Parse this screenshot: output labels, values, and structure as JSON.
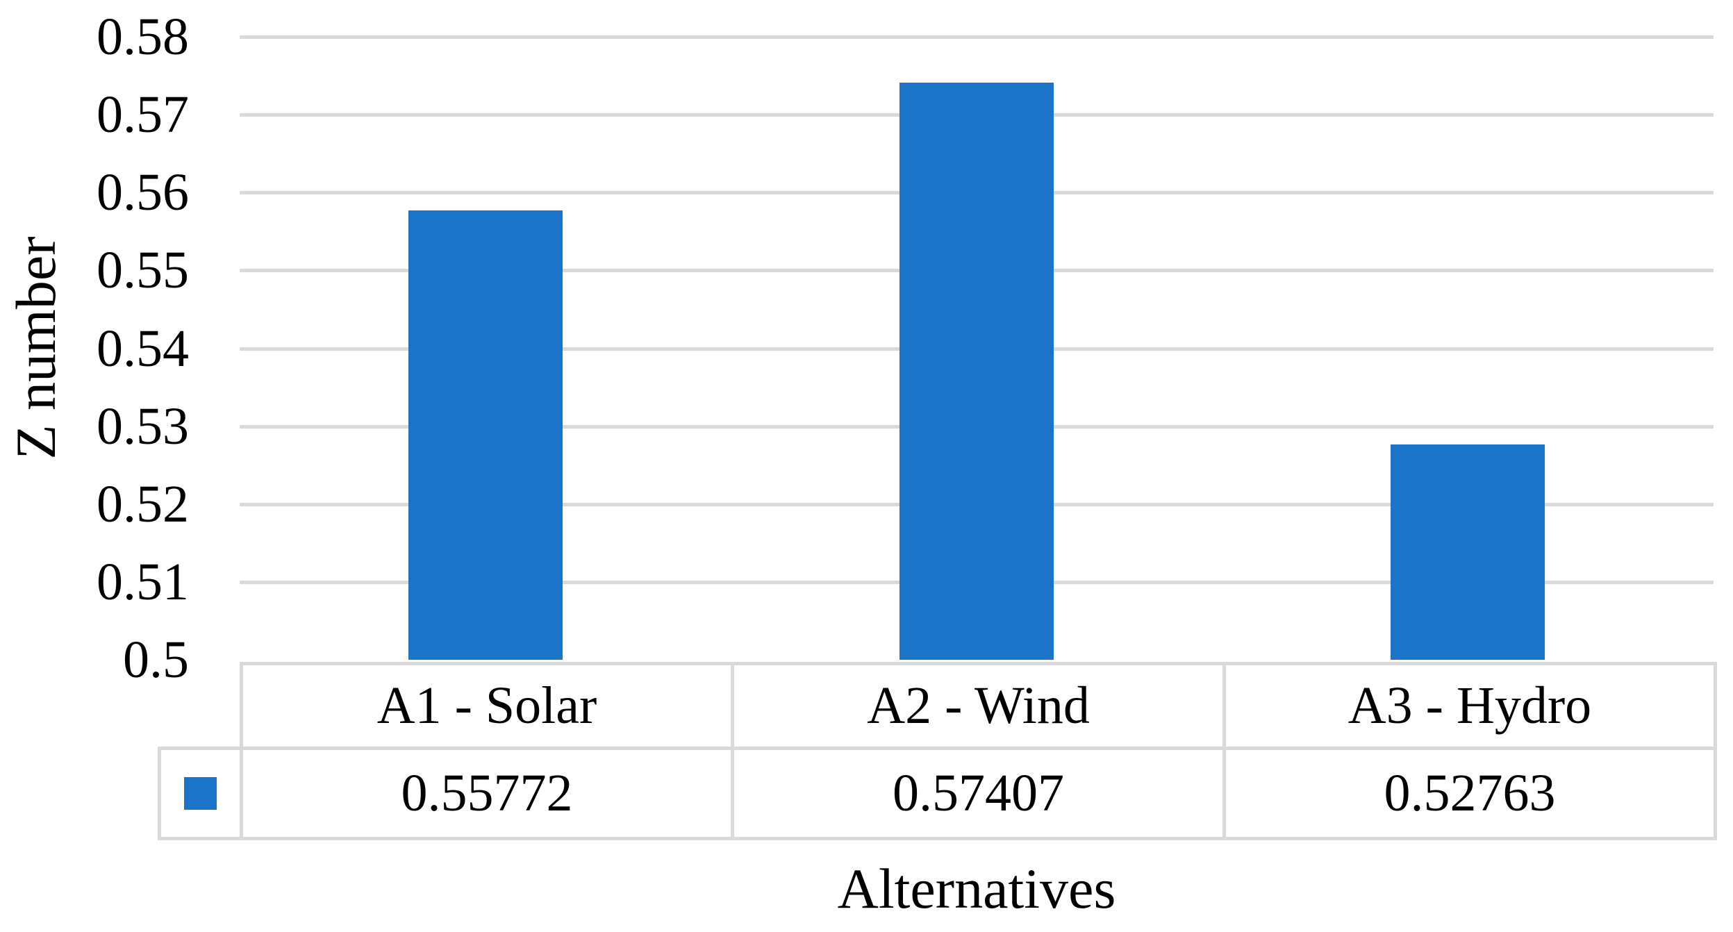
{
  "chart_data": {
    "type": "bar",
    "title": "",
    "categories": [
      "A1 - Solar",
      "A2 - Wind",
      "A3 - Hydro"
    ],
    "series": [
      {
        "name": "",
        "values": [
          0.55772,
          0.57407,
          0.52763
        ]
      }
    ],
    "value_labels": [
      "0.55772",
      "0.57407",
      "0.52763"
    ],
    "xlabel": "Alternatives",
    "ylabel": "Z number",
    "ylim": [
      0.5,
      0.58
    ],
    "ytick_step": 0.01,
    "ytick_labels": [
      "0.58",
      "0.57",
      "0.56",
      "0.55",
      "0.54",
      "0.53",
      "0.52",
      "0.51",
      "0.5"
    ],
    "grid": true,
    "legend_position": "data-table-key",
    "colors": {
      "bar": "#1B74C8",
      "gridline": "#D9D9D9",
      "table_border": "#D9D9D9",
      "text": "#000000",
      "background": "#FFFFFF"
    }
  }
}
